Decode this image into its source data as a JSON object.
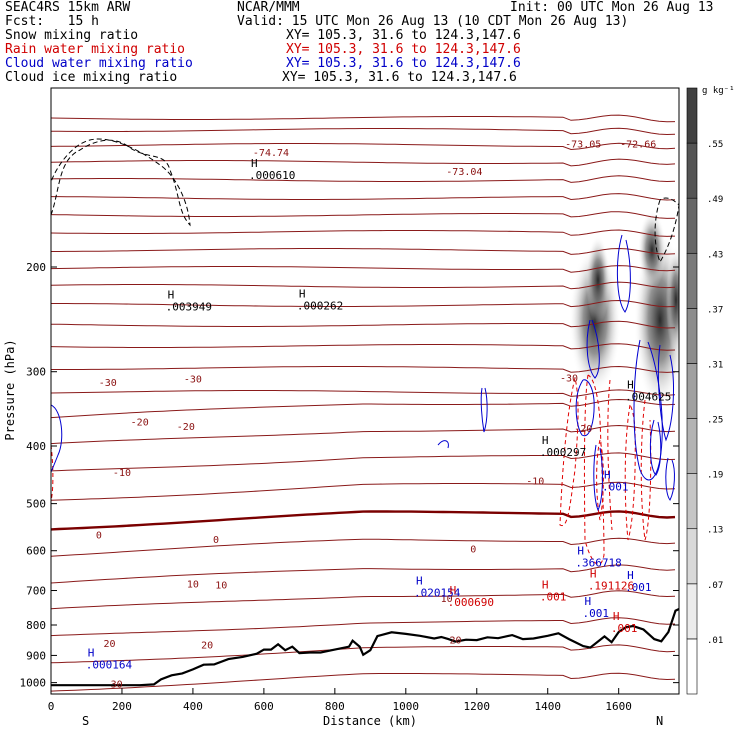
{
  "header": {
    "model": "SEAC4RS 15km ARW",
    "org": "NCAR/MMM",
    "init": "Init: 00 UTC Mon 26 Aug 13",
    "fcst": "Fcst:   15 h",
    "valid": "Valid: 15 UTC Mon 26 Aug 13 (10 CDT Mon 26 Aug 13)",
    "fields": [
      {
        "name": "Snow mixing ratio",
        "xy": "XY= 105.3, 31.6 to 124.3,147.6",
        "color": "#000000"
      },
      {
        "name": "Rain water mixing ratio",
        "xy": "XY= 105.3, 31.6 to 124.3,147.6",
        "color": "#d00000"
      },
      {
        "name": "Cloud water mixing ratio",
        "xy": "XY= 105.3, 31.6 to 124.3,147.6",
        "color": "#0000c8"
      },
      {
        "name": "Cloud ice mixing ratio",
        "xy": "XY= 105.3, 31.6 to 124.3,147.6",
        "color": "#000000"
      }
    ]
  },
  "chart_data": {
    "type": "cross-section",
    "xlabel": "Distance (km)",
    "ylabel": "Pressure (hPa)",
    "xlim": [
      0,
      1770
    ],
    "ylim": [
      100,
      1045
    ],
    "x_ticks": [
      0,
      200,
      400,
      600,
      800,
      1000,
      1200,
      1400,
      1600
    ],
    "y_ticks": [
      200,
      300,
      400,
      500,
      600,
      700,
      800,
      900,
      1000
    ],
    "endpoint_left": "S",
    "endpoint_right": "N",
    "colorbar": {
      "unit": "g kg⁻¹",
      "levels": [
        ".01",
        ".07",
        ".13",
        ".19",
        ".25",
        ".31",
        ".37",
        ".43",
        ".49",
        ".55"
      ]
    },
    "temperature_labels": [
      {
        "text": "-74.74",
        "x": 620,
        "p": 128
      },
      {
        "text": "-73.04",
        "x": 1165,
        "p": 138
      },
      {
        "text": "-73.05",
        "x": 1500,
        "p": 124
      },
      {
        "text": "-72.66",
        "x": 1655,
        "p": 124
      },
      {
        "text": "-30",
        "x": 160,
        "p": 312
      },
      {
        "text": "-30",
        "x": 400,
        "p": 308
      },
      {
        "text": "-30",
        "x": 1460,
        "p": 307
      },
      {
        "text": "-20",
        "x": 250,
        "p": 364
      },
      {
        "text": "-20",
        "x": 380,
        "p": 370
      },
      {
        "text": "-20",
        "x": 1500,
        "p": 373
      },
      {
        "text": "-10",
        "x": 200,
        "p": 442
      },
      {
        "text": "-10",
        "x": 1365,
        "p": 457
      },
      {
        "text": "0",
        "x": 135,
        "p": 563
      },
      {
        "text": "0",
        "x": 465,
        "p": 573
      },
      {
        "text": "0",
        "x": 1190,
        "p": 595
      },
      {
        "text": "10",
        "x": 400,
        "p": 681
      },
      {
        "text": "10",
        "x": 480,
        "p": 684
      },
      {
        "text": "10",
        "x": 1115,
        "p": 720
      },
      {
        "text": "20",
        "x": 165,
        "p": 857
      },
      {
        "text": "20",
        "x": 440,
        "p": 863
      },
      {
        "text": "20",
        "x": 1140,
        "p": 847
      },
      {
        "text": "30",
        "x": 185,
        "p": 1003
      }
    ],
    "max_labels": [
      {
        "text": ".000610",
        "x": 620,
        "p": 140,
        "series": "Snow mixing ratio"
      },
      {
        "text": ".003949",
        "x": 385,
        "p": 233,
        "series": "Snow mixing ratio"
      },
      {
        "text": ".000262",
        "x": 755,
        "p": 232,
        "series": "Snow mixing ratio"
      },
      {
        "text": ".000297",
        "x": 1440,
        "p": 409,
        "series": "Snow mixing ratio"
      },
      {
        "text": ".004625",
        "x": 1680,
        "p": 330,
        "series": "Snow mixing ratio"
      },
      {
        "text": ".001",
        "x": 1615,
        "p": 468,
        "series": "Cloud water mixing ratio"
      },
      {
        "text": ".366718",
        "x": 1540,
        "p": 628,
        "series": "Cloud water mixing ratio"
      },
      {
        "text": ".020154",
        "x": 1085,
        "p": 705,
        "series": "Cloud water mixing ratio"
      },
      {
        "text": ".000164",
        "x": 160,
        "p": 932,
        "series": "Cloud water mixing ratio"
      },
      {
        "text": ".001",
        "x": 1680,
        "p": 691,
        "series": "Cloud water mixing ratio"
      },
      {
        "text": ".001",
        "x": 1560,
        "p": 763,
        "series": "Cloud water mixing ratio"
      },
      {
        "text": ".191126",
        "x": 1575,
        "p": 686,
        "series": "Rain water mixing ratio"
      },
      {
        "text": ".000690",
        "x": 1180,
        "p": 732,
        "series": "Rain water mixing ratio"
      },
      {
        "text": ".001",
        "x": 1440,
        "p": 716,
        "series": "Rain water mixing ratio"
      },
      {
        "text": ".001",
        "x": 1640,
        "p": 809,
        "series": "Rain water mixing ratio"
      }
    ],
    "terrain_surface": [
      [
        0,
        1010
      ],
      [
        140,
        1010
      ],
      [
        250,
        1010
      ],
      [
        290,
        1007
      ],
      [
        310,
        987
      ],
      [
        340,
        972
      ],
      [
        370,
        965
      ],
      [
        400,
        950
      ],
      [
        430,
        933
      ],
      [
        460,
        932
      ],
      [
        500,
        913
      ],
      [
        540,
        905
      ],
      [
        580,
        894
      ],
      [
        600,
        880
      ],
      [
        620,
        880
      ],
      [
        640,
        862
      ],
      [
        660,
        882
      ],
      [
        680,
        870
      ],
      [
        700,
        892
      ],
      [
        730,
        890
      ],
      [
        760,
        890
      ],
      [
        800,
        880
      ],
      [
        840,
        870
      ],
      [
        850,
        850
      ],
      [
        870,
        870
      ],
      [
        880,
        898
      ],
      [
        900,
        882
      ],
      [
        920,
        835
      ],
      [
        960,
        823
      ],
      [
        1000,
        828
      ],
      [
        1040,
        834
      ],
      [
        1080,
        843
      ],
      [
        1100,
        838
      ],
      [
        1120,
        845
      ],
      [
        1140,
        853
      ],
      [
        1170,
        847
      ],
      [
        1200,
        848
      ],
      [
        1230,
        839
      ],
      [
        1260,
        842
      ],
      [
        1300,
        832
      ],
      [
        1330,
        845
      ],
      [
        1360,
        843
      ],
      [
        1400,
        834
      ],
      [
        1430,
        826
      ],
      [
        1460,
        845
      ],
      [
        1500,
        868
      ],
      [
        1520,
        873
      ],
      [
        1560,
        836
      ],
      [
        1580,
        855
      ],
      [
        1600,
        822
      ],
      [
        1620,
        807
      ],
      [
        1640,
        803
      ],
      [
        1670,
        814
      ],
      [
        1700,
        845
      ],
      [
        1720,
        852
      ],
      [
        1740,
        822
      ],
      [
        1760,
        757
      ],
      [
        1770,
        752
      ]
    ]
  }
}
